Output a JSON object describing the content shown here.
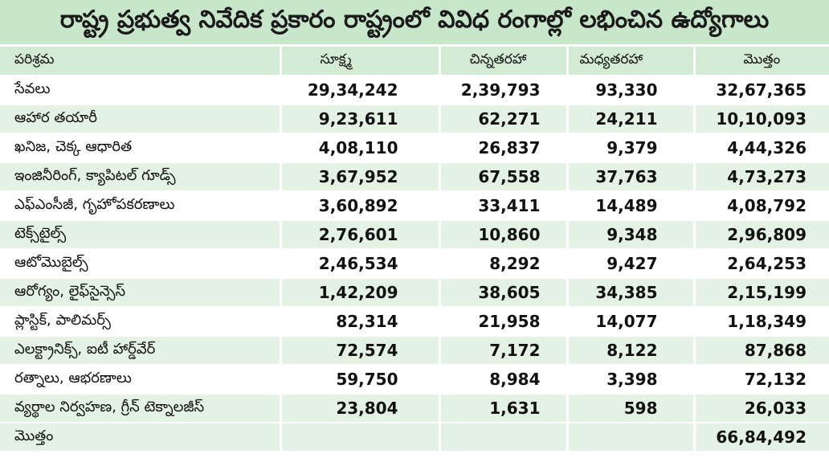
{
  "title": "రాష్ట్ర ప్రభుత్వ నివేదిక ప్రకారం రాష్ట్రంలో వివిధ రంగాల్లో లభించిన ఉద్యోగాలు",
  "headers": [
    "పరిశ్రమ",
    "సూక్ష్మ",
    "చిన్నతరహా",
    "మధ్యతరహా",
    "మొత్తం"
  ],
  "rows": [
    {
      "sector": "సేవలు",
      "micro": "29,34,242",
      "small": "2,39,793",
      "medium": "93,330",
      "total": "32,67,365"
    },
    {
      "sector": "ఆహార తయారీ",
      "micro": "9,23,611",
      "small": "62,271",
      "medium": "24,211",
      "total": "10,10,093"
    },
    {
      "sector": "ఖనిజ, చెక్క ఆధారిత",
      "micro": "4,08,110",
      "small": "26,837",
      "medium": "9,379",
      "total": "4,44,326"
    },
    {
      "sector": "ఇంజినీరింగ్, క్యాపిటల్ గూడ్స్",
      "micro": "3,67,952",
      "small": "67,558",
      "medium": "37,763",
      "total": "4,73,273"
    },
    {
      "sector": "ఎఫ్ఎంసీజీ, గృహోపకరణాలు",
      "micro": "3,60,892",
      "small": "33,411",
      "medium": "14,489",
      "total": "4,08,792"
    },
    {
      "sector": "టెక్స్‌టైల్స్",
      "micro": "2,76,601",
      "small": "10,860",
      "medium": "9,348",
      "total": "2,96,809"
    },
    {
      "sector": "ఆటోమొబైల్స్",
      "micro": "2,46,534",
      "small": "8,292",
      "medium": "9,427",
      "total": "2,64,253"
    },
    {
      "sector": "ఆరోగ్యం, లైఫ్‌సైన్సెస్",
      "micro": "1,42,209",
      "small": "38,605",
      "medium": "34,385",
      "total": "2,15,199"
    },
    {
      "sector": "ప్లాస్టిక్, పాలిమర్స్",
      "micro": "82,314",
      "small": "21,958",
      "medium": "14,077",
      "total": "1,18,349"
    },
    {
      "sector": "ఎలక్ట్రానిక్స్, ఐటీ హార్డ్‌వేర్",
      "micro": "72,574",
      "small": "7,172",
      "medium": "8,122",
      "total": "87,868"
    },
    {
      "sector": "రత్నాలు, ఆభరణాలు",
      "micro": "59,750",
      "small": "8,984",
      "medium": "3,398",
      "total": "72,132"
    },
    {
      "sector": "వ్యర్థాల నిర్వహణ, గ్రీన్ టెక్నాలజీస్",
      "micro": "23,804",
      "small": "1,631",
      "medium": "598",
      "total": "26,033"
    }
  ],
  "total_row": {
    "label": "మొత్తం",
    "micro": "",
    "small": "",
    "medium": "",
    "total": "66,84,492"
  },
  "colors": {
    "title_bg": "#c8e6c9",
    "header_bg": "#d3ebd4",
    "stripe_bg": "#e3f2e4"
  }
}
